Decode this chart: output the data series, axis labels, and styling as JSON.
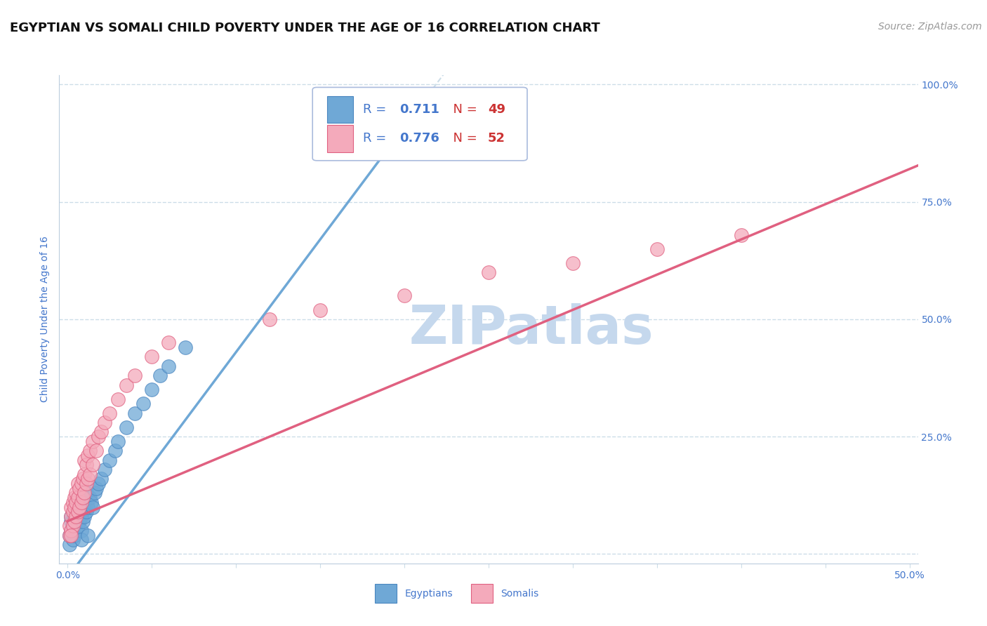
{
  "title": "EGYPTIAN VS SOMALI CHILD POVERTY UNDER THE AGE OF 16 CORRELATION CHART",
  "source": "Source: ZipAtlas.com",
  "ylabel": "Child Poverty Under the Age of 16",
  "xlim": [
    -0.005,
    0.505
  ],
  "ylim": [
    -0.02,
    1.02
  ],
  "xticks": [
    0.0,
    0.05,
    0.1,
    0.15,
    0.2,
    0.25,
    0.3,
    0.35,
    0.4,
    0.45,
    0.5
  ],
  "xticklabels": [
    "0.0%",
    "",
    "",
    "",
    "",
    "",
    "",
    "",
    "",
    "",
    "50.0%"
  ],
  "yticks": [
    0.0,
    0.25,
    0.5,
    0.75,
    1.0
  ],
  "yticklabels_right": [
    "",
    "25.0%",
    "50.0%",
    "75.0%",
    "100.0%"
  ],
  "egypt_color": "#6FA8D6",
  "egypt_edge": "#4A86C0",
  "somali_color": "#F4AABB",
  "somali_edge": "#E06080",
  "egypt_R": "0.711",
  "egypt_N": "49",
  "somali_R": "0.776",
  "somali_N": "52",
  "egypt_line_slope": 4.8,
  "egypt_line_intercept": -0.05,
  "somali_line_slope": 1.5,
  "somali_line_intercept": 0.07,
  "watermark": "ZIPatlas",
  "watermark_color": "#C5D8ED",
  "legend_R_color": "#4477CC",
  "legend_N_color": "#CC3333",
  "background_color": "#FFFFFF",
  "grid_color": "#CCDDE8",
  "axis_label_color": "#4477CC",
  "tick_color": "#4477CC",
  "egypt_scatter": [
    [
      0.001,
      0.02
    ],
    [
      0.001,
      0.04
    ],
    [
      0.002,
      0.05
    ],
    [
      0.002,
      0.07
    ],
    [
      0.002,
      0.08
    ],
    [
      0.003,
      0.03
    ],
    [
      0.003,
      0.06
    ],
    [
      0.003,
      0.07
    ],
    [
      0.004,
      0.04
    ],
    [
      0.004,
      0.06
    ],
    [
      0.004,
      0.08
    ],
    [
      0.005,
      0.05
    ],
    [
      0.005,
      0.07
    ],
    [
      0.005,
      0.09
    ],
    [
      0.006,
      0.06
    ],
    [
      0.006,
      0.08
    ],
    [
      0.006,
      0.1
    ],
    [
      0.007,
      0.07
    ],
    [
      0.007,
      0.09
    ],
    [
      0.007,
      0.11
    ],
    [
      0.008,
      0.05
    ],
    [
      0.008,
      0.08
    ],
    [
      0.009,
      0.07
    ],
    [
      0.009,
      0.1
    ],
    [
      0.01,
      0.08
    ],
    [
      0.01,
      0.11
    ],
    [
      0.011,
      0.09
    ],
    [
      0.011,
      0.13
    ],
    [
      0.012,
      0.1
    ],
    [
      0.013,
      0.12
    ],
    [
      0.014,
      0.11
    ],
    [
      0.015,
      0.1
    ],
    [
      0.016,
      0.13
    ],
    [
      0.017,
      0.14
    ],
    [
      0.018,
      0.15
    ],
    [
      0.02,
      0.16
    ],
    [
      0.022,
      0.18
    ],
    [
      0.025,
      0.2
    ],
    [
      0.028,
      0.22
    ],
    [
      0.03,
      0.24
    ],
    [
      0.035,
      0.27
    ],
    [
      0.04,
      0.3
    ],
    [
      0.045,
      0.32
    ],
    [
      0.05,
      0.35
    ],
    [
      0.055,
      0.38
    ],
    [
      0.06,
      0.4
    ],
    [
      0.07,
      0.44
    ],
    [
      0.008,
      0.03
    ],
    [
      0.012,
      0.04
    ]
  ],
  "somali_scatter": [
    [
      0.001,
      0.04
    ],
    [
      0.001,
      0.06
    ],
    [
      0.002,
      0.05
    ],
    [
      0.002,
      0.08
    ],
    [
      0.002,
      0.1
    ],
    [
      0.003,
      0.06
    ],
    [
      0.003,
      0.09
    ],
    [
      0.003,
      0.11
    ],
    [
      0.004,
      0.07
    ],
    [
      0.004,
      0.1
    ],
    [
      0.004,
      0.12
    ],
    [
      0.005,
      0.08
    ],
    [
      0.005,
      0.11
    ],
    [
      0.005,
      0.13
    ],
    [
      0.006,
      0.09
    ],
    [
      0.006,
      0.12
    ],
    [
      0.006,
      0.15
    ],
    [
      0.007,
      0.1
    ],
    [
      0.007,
      0.14
    ],
    [
      0.008,
      0.11
    ],
    [
      0.008,
      0.15
    ],
    [
      0.009,
      0.12
    ],
    [
      0.009,
      0.16
    ],
    [
      0.01,
      0.13
    ],
    [
      0.01,
      0.17
    ],
    [
      0.01,
      0.2
    ],
    [
      0.011,
      0.15
    ],
    [
      0.011,
      0.19
    ],
    [
      0.012,
      0.16
    ],
    [
      0.012,
      0.21
    ],
    [
      0.013,
      0.17
    ],
    [
      0.013,
      0.22
    ],
    [
      0.015,
      0.19
    ],
    [
      0.015,
      0.24
    ],
    [
      0.017,
      0.22
    ],
    [
      0.018,
      0.25
    ],
    [
      0.02,
      0.26
    ],
    [
      0.022,
      0.28
    ],
    [
      0.025,
      0.3
    ],
    [
      0.03,
      0.33
    ],
    [
      0.035,
      0.36
    ],
    [
      0.04,
      0.38
    ],
    [
      0.05,
      0.42
    ],
    [
      0.06,
      0.45
    ],
    [
      0.12,
      0.5
    ],
    [
      0.15,
      0.52
    ],
    [
      0.2,
      0.55
    ],
    [
      0.25,
      0.6
    ],
    [
      0.3,
      0.62
    ],
    [
      0.35,
      0.65
    ],
    [
      0.4,
      0.68
    ],
    [
      0.002,
      0.04
    ]
  ]
}
